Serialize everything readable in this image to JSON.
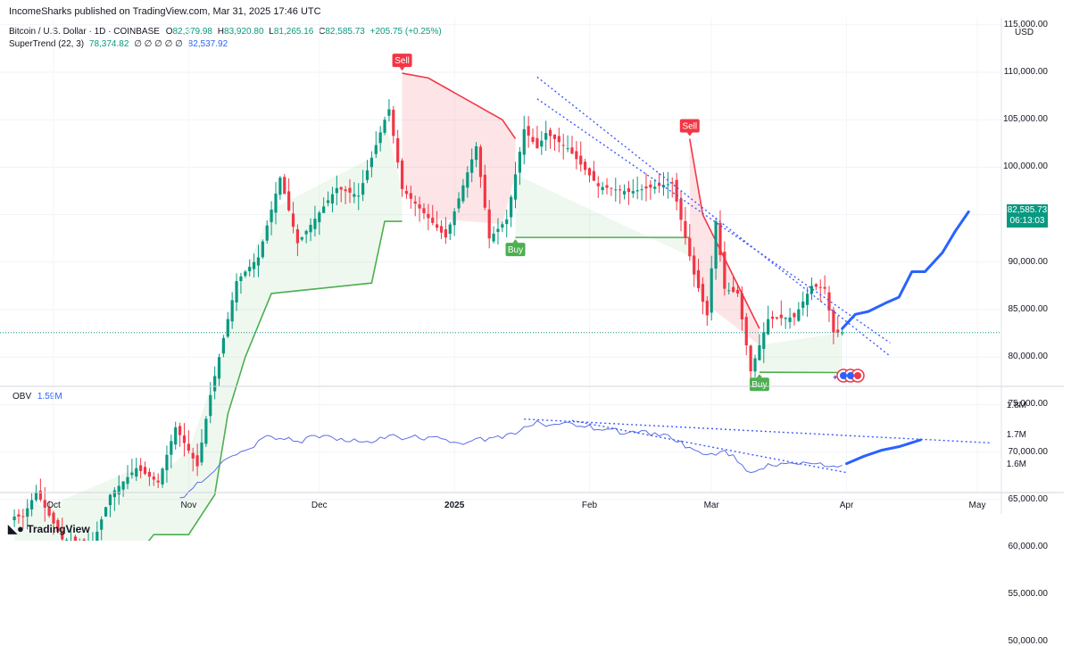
{
  "header": {
    "published": "IncomeSharks published on TradingView.com, Mar 31, 2025 17:46 UTC",
    "symbol": "Bitcoin / U.S. Dollar · 1D · COINBASE",
    "ohlc": {
      "o_label": "O",
      "o": "82,379.98",
      "h_label": "H",
      "h": "83,920.80",
      "l_label": "L",
      "l": "81,265.16",
      "c_label": "C",
      "c": "82,585.73",
      "chg": "+205.75 (+0.25%)"
    },
    "indicator": {
      "name": "SuperTrend (22, 3)",
      "v1": "78,374.82",
      "flags": "∅ ∅ ∅ ∅ ∅",
      "v2": "82,537.92"
    },
    "obv": {
      "name": "OBV",
      "value": "1.59M"
    },
    "currency": "USD"
  },
  "price_badge": {
    "price": "82,585.73",
    "countdown": "06:13:03"
  },
  "branding": {
    "logo": "TradingView"
  },
  "colors": {
    "up": "#089981",
    "down": "#f23645",
    "supertrend_up": "#4caf50",
    "supertrend_down": "#f23645",
    "projection": "#2962ff",
    "obv": "#5b6fe6"
  },
  "chart_data": [
    {
      "type": "candlestick",
      "title": "Bitcoin / U.S. Dollar · 1D · COINBASE",
      "ylabel": "USD",
      "y_ticks": [
        "115,000.00",
        "110,000.00",
        "105,000.00",
        "100,000.00",
        "95,000.00",
        "90,000.00",
        "85,000.00",
        "80,000.00",
        "75,000.00",
        "70,000.00",
        "65,000.00",
        "60,000.00",
        "55,000.00",
        "50,000.00"
      ],
      "x_ticks": [
        "Oct",
        "Nov",
        "Dec",
        "2025",
        "Feb",
        "Mar",
        "Apr",
        "May"
      ],
      "ylim": [
        47000,
        117000
      ],
      "close_path": [
        {
          "x": "2024-09-24",
          "y": 63200
        },
        {
          "x": "2024-09-27",
          "y": 65800
        },
        {
          "x": "2024-10-03",
          "y": 60800
        },
        {
          "x": "2024-10-10",
          "y": 60300
        },
        {
          "x": "2024-10-14",
          "y": 65500
        },
        {
          "x": "2024-10-20",
          "y": 68300
        },
        {
          "x": "2024-10-25",
          "y": 66800
        },
        {
          "x": "2024-10-29",
          "y": 72600
        },
        {
          "x": "2024-11-03",
          "y": 68500
        },
        {
          "x": "2024-11-06",
          "y": 76000
        },
        {
          "x": "2024-11-12",
          "y": 88000
        },
        {
          "x": "2024-11-17",
          "y": 90500
        },
        {
          "x": "2024-11-22",
          "y": 98900
        },
        {
          "x": "2024-11-26",
          "y": 92000
        },
        {
          "x": "2024-12-05",
          "y": 97800
        },
        {
          "x": "2024-12-10",
          "y": 97000
        },
        {
          "x": "2024-12-16",
          "y": 105000
        },
        {
          "x": "2024-12-17",
          "y": 106100
        },
        {
          "x": "2024-12-20",
          "y": 97700
        },
        {
          "x": "2024-12-30",
          "y": 92600
        },
        {
          "x": "2025-01-06",
          "y": 102200
        },
        {
          "x": "2025-01-09",
          "y": 92500
        },
        {
          "x": "2025-01-13",
          "y": 94500
        },
        {
          "x": "2025-01-17",
          "y": 104000
        },
        {
          "x": "2025-01-20",
          "y": 102000
        },
        {
          "x": "2025-01-22",
          "y": 103600
        },
        {
          "x": "2025-01-27",
          "y": 102000
        },
        {
          "x": "2025-02-03",
          "y": 98000
        },
        {
          "x": "2025-02-10",
          "y": 97400
        },
        {
          "x": "2025-02-20",
          "y": 98300
        },
        {
          "x": "2025-02-25",
          "y": 88700
        },
        {
          "x": "2025-02-28",
          "y": 84400
        },
        {
          "x": "2025-03-02",
          "y": 94300
        },
        {
          "x": "2025-03-04",
          "y": 87200
        },
        {
          "x": "2025-03-07",
          "y": 86700
        },
        {
          "x": "2025-03-10",
          "y": 78500
        },
        {
          "x": "2025-03-14",
          "y": 84000
        },
        {
          "x": "2025-03-20",
          "y": 84200
        },
        {
          "x": "2025-03-24",
          "y": 87500
        },
        {
          "x": "2025-03-27",
          "y": 87200
        },
        {
          "x": "2025-03-29",
          "y": 82600
        },
        {
          "x": "2025-03-31",
          "y": 82585
        }
      ],
      "supertrend": [
        {
          "x": "2024-09-22",
          "y": 55300,
          "side": "up"
        },
        {
          "x": "2024-09-26",
          "y": 57000,
          "side": "up"
        },
        {
          "x": "2024-09-29",
          "y": 59000,
          "side": "up"
        },
        {
          "x": "2024-10-20",
          "y": 59000,
          "side": "up"
        },
        {
          "x": "2024-10-24",
          "y": 61300,
          "side": "up"
        },
        {
          "x": "2024-11-01",
          "y": 61300,
          "side": "up"
        },
        {
          "x": "2024-11-07",
          "y": 65500,
          "side": "up"
        },
        {
          "x": "2024-11-10",
          "y": 74000,
          "side": "up"
        },
        {
          "x": "2024-11-14",
          "y": 80000,
          "side": "up"
        },
        {
          "x": "2024-11-20",
          "y": 86700,
          "side": "up"
        },
        {
          "x": "2024-12-13",
          "y": 87800,
          "side": "up"
        },
        {
          "x": "2024-12-16",
          "y": 94300,
          "side": "up"
        },
        {
          "x": "2024-12-20",
          "y": 94300,
          "side": "up"
        },
        {
          "x": "2024-12-20",
          "y": 109900,
          "side": "down"
        },
        {
          "x": "2024-12-26",
          "y": 109400,
          "side": "down"
        },
        {
          "x": "2025-01-12",
          "y": 105000,
          "side": "down"
        },
        {
          "x": "2025-01-15",
          "y": 103000,
          "side": "down"
        },
        {
          "x": "2025-01-15",
          "y": 92600,
          "side": "up"
        },
        {
          "x": "2025-02-24",
          "y": 92600,
          "side": "up"
        },
        {
          "x": "2025-02-24",
          "y": 103000,
          "side": "down"
        },
        {
          "x": "2025-02-27",
          "y": 95000,
          "side": "down"
        },
        {
          "x": "2025-03-12",
          "y": 83000,
          "side": "down"
        },
        {
          "x": "2025-03-12",
          "y": 78400,
          "side": "up"
        },
        {
          "x": "2025-03-31",
          "y": 78374
        }
      ],
      "signals": [
        {
          "label": "Sell",
          "x": "2024-12-20",
          "y": 109900
        },
        {
          "label": "Buy",
          "x": "2025-01-15",
          "y": 92600
        },
        {
          "label": "Sell",
          "x": "2025-02-24",
          "y": 103000
        },
        {
          "label": "Buy",
          "x": "2025-03-12",
          "y": 78400
        }
      ],
      "trendlines": [
        {
          "from": {
            "x": "2025-01-20",
            "y": 109500
          },
          "to": {
            "x": "2025-04-11",
            "y": 80100
          }
        },
        {
          "from": {
            "x": "2025-01-20",
            "y": 107200
          },
          "to": {
            "x": "2025-04-11",
            "y": 81500
          }
        }
      ],
      "projection": [
        {
          "x": "2025-03-31",
          "y": 83000
        },
        {
          "x": "2025-04-03",
          "y": 84500
        },
        {
          "x": "2025-04-06",
          "y": 84800
        },
        {
          "x": "2025-04-10",
          "y": 85700
        },
        {
          "x": "2025-04-13",
          "y": 86300
        },
        {
          "x": "2025-04-16",
          "y": 89000
        },
        {
          "x": "2025-04-19",
          "y": 89000
        },
        {
          "x": "2025-04-23",
          "y": 91000
        },
        {
          "x": "2025-04-26",
          "y": 93300
        },
        {
          "x": "2025-04-29",
          "y": 95300
        }
      ],
      "last_price": 82585.73
    },
    {
      "type": "line",
      "title": "OBV",
      "y_ticks": [
        "1.8M",
        "1.7M",
        "1.6M"
      ],
      "ylim": [
        1.49,
        1.84
      ],
      "series": [
        {
          "name": "OBV",
          "values": [
            {
              "x": "2024-10-30",
              "y": 1.49
            },
            {
              "x": "2024-11-05",
              "y": 1.555
            },
            {
              "x": "2024-11-08",
              "y": 1.6
            },
            {
              "x": "2024-11-12",
              "y": 1.635
            },
            {
              "x": "2024-11-16",
              "y": 1.66
            },
            {
              "x": "2024-11-19",
              "y": 1.7
            },
            {
              "x": "2024-11-22",
              "y": 1.69
            },
            {
              "x": "2024-11-26",
              "y": 1.68
            },
            {
              "x": "2024-12-02",
              "y": 1.7
            },
            {
              "x": "2024-12-06",
              "y": 1.69
            },
            {
              "x": "2024-12-12",
              "y": 1.68
            },
            {
              "x": "2024-12-17",
              "y": 1.7
            },
            {
              "x": "2024-12-21",
              "y": 1.69
            },
            {
              "x": "2024-12-27",
              "y": 1.695
            },
            {
              "x": "2025-01-02",
              "y": 1.675
            },
            {
              "x": "2025-01-06",
              "y": 1.69
            },
            {
              "x": "2025-01-12",
              "y": 1.69
            },
            {
              "x": "2025-01-16",
              "y": 1.715
            },
            {
              "x": "2025-01-20",
              "y": 1.75
            },
            {
              "x": "2025-01-23",
              "y": 1.735
            },
            {
              "x": "2025-01-27",
              "y": 1.745
            },
            {
              "x": "2025-02-03",
              "y": 1.72
            },
            {
              "x": "2025-02-10",
              "y": 1.71
            },
            {
              "x": "2025-02-18",
              "y": 1.705
            },
            {
              "x": "2025-02-24",
              "y": 1.66
            },
            {
              "x": "2025-02-28",
              "y": 1.635
            },
            {
              "x": "2025-03-03",
              "y": 1.645
            },
            {
              "x": "2025-03-06",
              "y": 1.635
            },
            {
              "x": "2025-03-10",
              "y": 1.575
            },
            {
              "x": "2025-03-14",
              "y": 1.605
            },
            {
              "x": "2025-03-19",
              "y": 1.608
            },
            {
              "x": "2025-03-24",
              "y": 1.605
            },
            {
              "x": "2025-03-28",
              "y": 1.595
            },
            {
              "x": "2025-03-31",
              "y": 1.6
            }
          ]
        }
      ],
      "trendlines": [
        {
          "from": {
            "x": "2025-01-17",
            "y": 1.755
          },
          "to": {
            "x": "2025-05-04",
            "y": 1.675
          }
        },
        {
          "from": {
            "x": "2025-01-28",
            "y": 1.75
          },
          "to": {
            "x": "2025-04-01",
            "y": 1.575
          }
        }
      ],
      "projection": [
        {
          "x": "2025-04-01",
          "y": 1.605
        },
        {
          "x": "2025-04-05",
          "y": 1.63
        },
        {
          "x": "2025-04-09",
          "y": 1.65
        },
        {
          "x": "2025-04-13",
          "y": 1.662
        },
        {
          "x": "2025-04-18",
          "y": 1.685
        }
      ]
    }
  ]
}
